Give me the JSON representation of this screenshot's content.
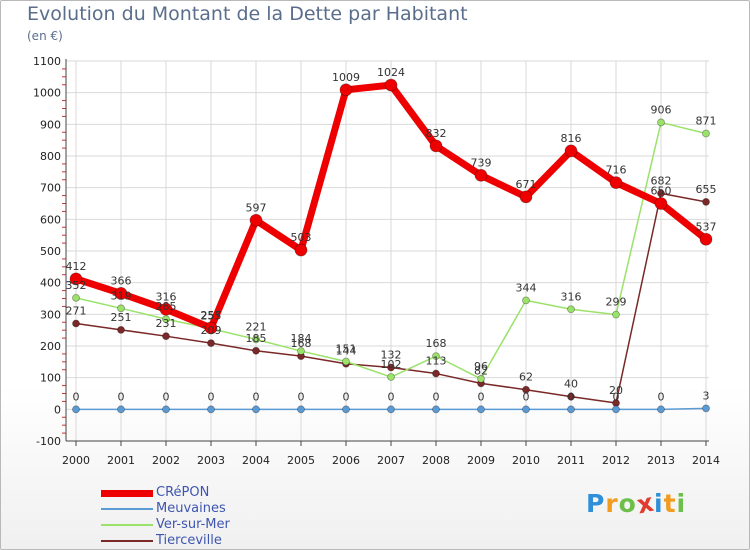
{
  "header": {
    "title": "Evolution du Montant de la Dette par Habitant",
    "unit": "(en €)"
  },
  "chart_data": {
    "type": "line",
    "title": "Evolution du Montant de la Dette par Habitant",
    "ylabel": "(en €)",
    "xlabel": "",
    "ylim": [
      -100,
      1100
    ],
    "yticks": [
      "1100",
      "1000",
      "900",
      "800",
      "700",
      "600",
      "500",
      "400",
      "300",
      "200",
      "100",
      "0",
      "-100"
    ],
    "categories": [
      "2000",
      "2001",
      "2002",
      "2003",
      "2004",
      "2005",
      "2006",
      "2007",
      "2008",
      "2009",
      "2010",
      "2011",
      "2012",
      "2013",
      "2014"
    ],
    "grid": true,
    "legend_position": "bottom-left",
    "series": [
      {
        "name": "CRéPON",
        "color": "#ee0000",
        "labels_above": true,
        "values": [
          412,
          366,
          316,
          257,
          597,
          503,
          1009,
          1024,
          832,
          739,
          671,
          816,
          716,
          650,
          537
        ],
        "labels": [
          "412",
          "366",
          "316",
          "257",
          "597",
          "503",
          "1009",
          "1024",
          "832",
          "739",
          "671",
          "816",
          "716",
          "650",
          "537"
        ]
      },
      {
        "name": "Meuvaines",
        "color": "#5b9bd5",
        "labels_above": true,
        "values": [
          0,
          0,
          0,
          0,
          0,
          0,
          0,
          0,
          0,
          0,
          0,
          0,
          0,
          0,
          3
        ],
        "labels": [
          "0",
          "0",
          "0",
          "0",
          "0",
          "0",
          "0",
          "0",
          "0",
          "0",
          "0",
          "0",
          "0",
          "0",
          "3"
        ]
      },
      {
        "name": "Ver-sur-Mer",
        "color": "#9be26a",
        "labels_above": true,
        "values": [
          352,
          319,
          285,
          255,
          221,
          184,
          151,
          102,
          168,
          96,
          344,
          316,
          299,
          906,
          871
        ],
        "labels": [
          "352",
          "319",
          "285",
          "255",
          "221",
          "184",
          "151",
          "102",
          "168",
          "96",
          "344",
          "316",
          "299",
          "906",
          "871"
        ]
      },
      {
        "name": "Tierceville",
        "color": "#7a2828",
        "labels_above": true,
        "values": [
          271,
          251,
          231,
          209,
          185,
          168,
          144,
          132,
          113,
          82,
          62,
          40,
          20,
          682,
          655
        ],
        "labels": [
          "271",
          "251",
          "231",
          "209",
          "185",
          "168",
          "144",
          "132",
          "113",
          "82",
          "62",
          "40",
          "20",
          "682",
          "655"
        ]
      }
    ]
  },
  "logo": {
    "letters": [
      "P",
      "r",
      "o",
      "x",
      "i",
      "t",
      "i"
    ],
    "colors": [
      "#2f8fd8",
      "#f29c1f",
      "#6cc04a",
      "#e23b2e",
      "#2f8fd8",
      "#f29c1f",
      "#6cc04a"
    ]
  }
}
